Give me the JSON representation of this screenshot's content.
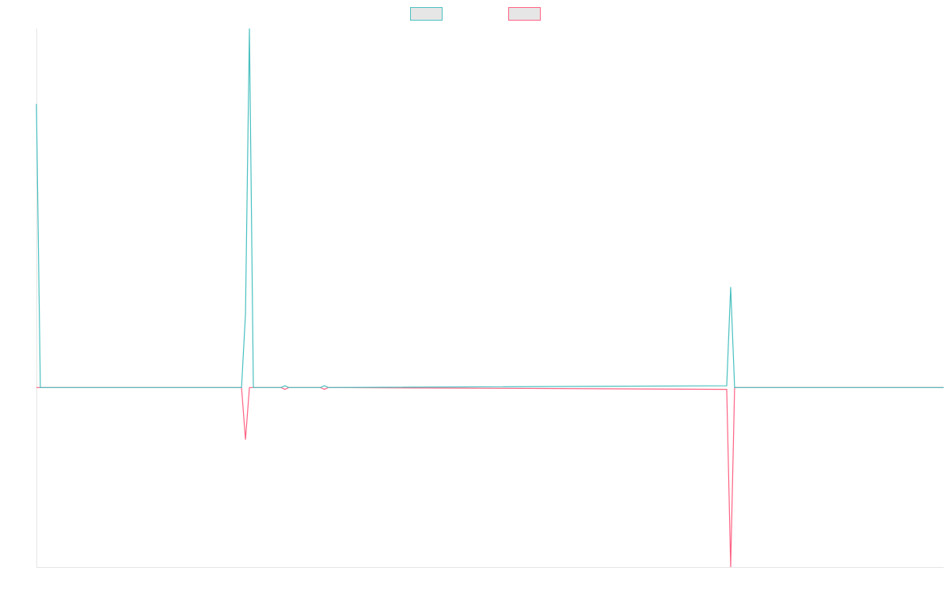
{
  "chart_data": {
    "type": "line",
    "x": [
      0,
      1,
      52,
      53,
      54,
      55,
      62,
      63,
      64,
      72,
      73,
      74,
      175,
      176,
      177,
      230
    ],
    "series": [
      {
        "color": "#4bc0c0",
        "values": [
          1.58,
          0,
          0,
          0.41,
          2,
          0,
          0,
          0.01,
          0,
          0,
          0.01,
          0,
          0.01,
          0.56,
          0,
          0
        ]
      },
      {
        "color": "#ff6384",
        "values": [
          0,
          0,
          0,
          -0.29,
          0,
          0,
          0,
          -0.01,
          0,
          0,
          -0.01,
          0,
          -0.01,
          -1,
          0,
          0
        ]
      }
    ],
    "xlim": [
      0,
      230
    ],
    "ylim": [
      -1,
      2
    ],
    "grid": false,
    "legend": "top"
  }
}
